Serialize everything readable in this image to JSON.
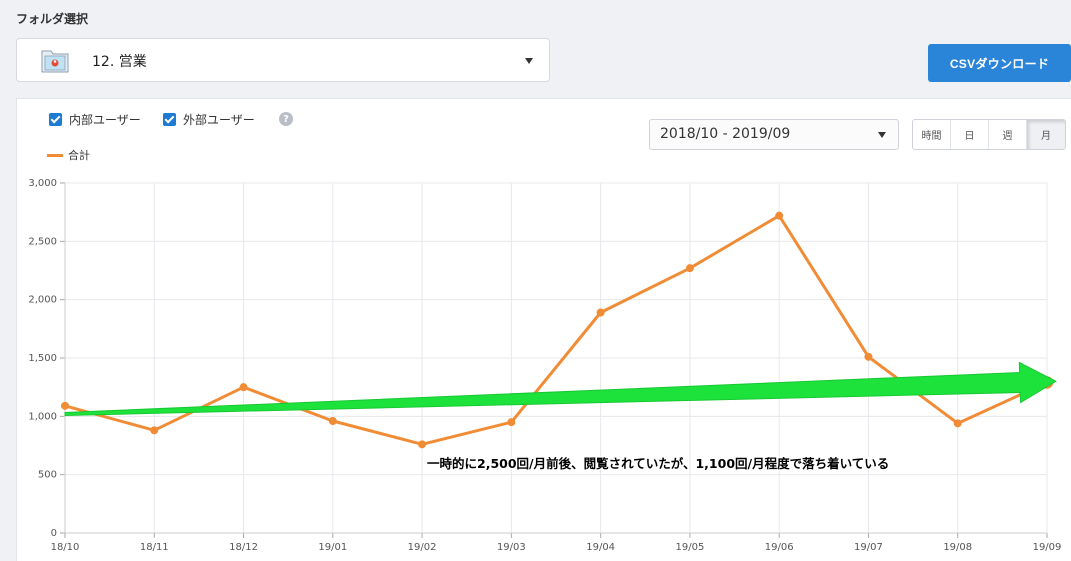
{
  "folder": {
    "label": "フォルダ選択",
    "selected": "12. 営業",
    "icon": "folder-icon"
  },
  "csv_button": "CSVダウンロード",
  "filters": {
    "internal_users": "内部ユーザー",
    "external_users": "外部ユーザー",
    "help": "?"
  },
  "legend": {
    "total": "合計"
  },
  "date_range": "2018/10 - 2019/09",
  "range_tabs": [
    {
      "label": "時間",
      "active": false
    },
    {
      "label": "日",
      "active": false
    },
    {
      "label": "週",
      "active": false
    },
    {
      "label": "月",
      "active": true
    }
  ],
  "colors": {
    "line": "#f08c36",
    "accent": "#2a85d8",
    "arrow": "#1ee23c"
  },
  "chart_data": {
    "type": "line",
    "categories": [
      "18/10",
      "18/11",
      "18/12",
      "19/01",
      "19/02",
      "19/03",
      "19/04",
      "19/05",
      "19/06",
      "19/07",
      "19/08",
      "19/09"
    ],
    "series": [
      {
        "name": "合計",
        "values": [
          1090,
          880,
          1250,
          960,
          760,
          950,
          1890,
          2270,
          2720,
          1510,
          940,
          1290
        ]
      }
    ],
    "ylim": [
      0,
      3000
    ],
    "yticks": [
      "0",
      "500",
      "1,000",
      "1,500",
      "2,000",
      "2,500",
      "3,000"
    ],
    "grid": true,
    "annotation": "一時的に2,500回/月前後、閲覧されていたが、1,100回/月程度で落ち着いている",
    "trend_arrow": {
      "from": [
        0,
        1020
      ],
      "to": [
        11.1,
        1300
      ]
    }
  }
}
